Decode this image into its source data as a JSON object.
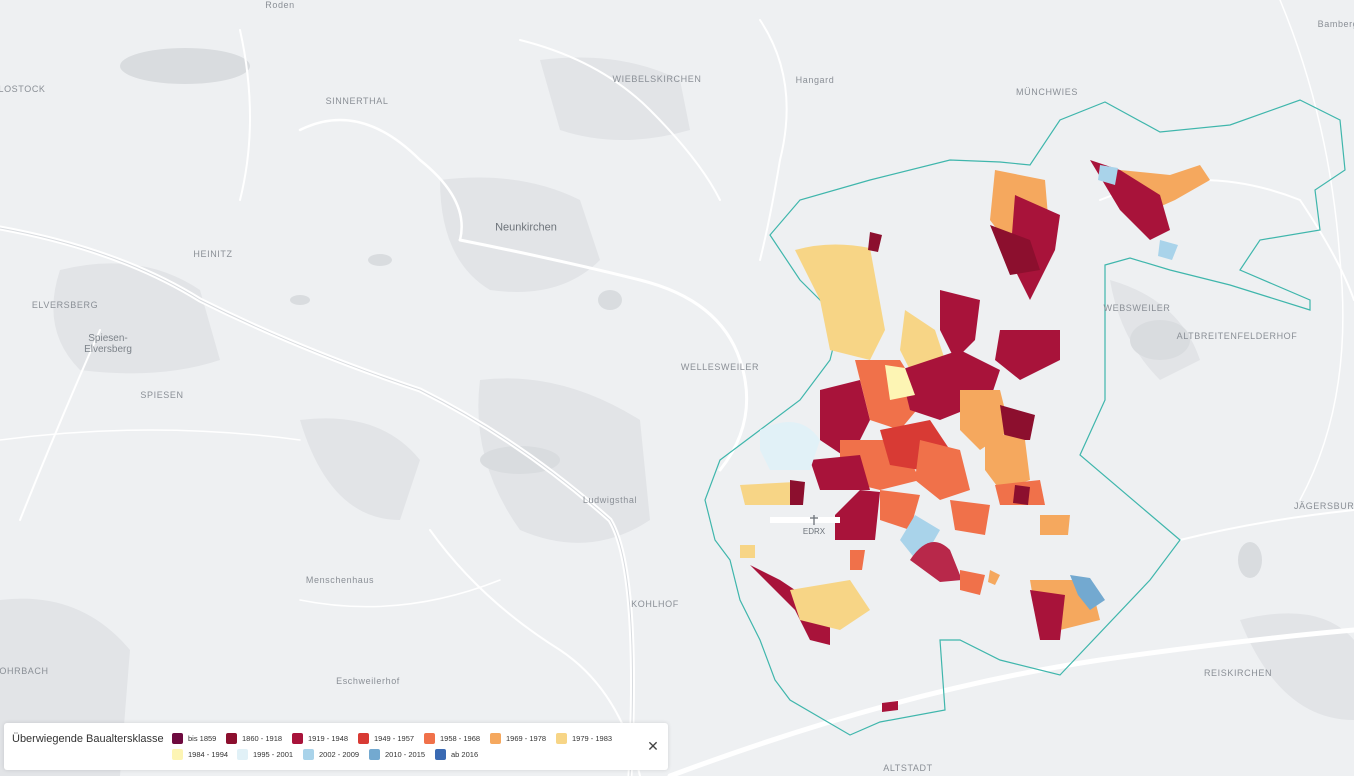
{
  "map": {
    "places": [
      {
        "label": "Roden"
      },
      {
        "label": "LOSTOCK"
      },
      {
        "label": "SINNERTHAL"
      },
      {
        "label": "WIEBELSKIRCHEN"
      },
      {
        "label": "Hangard"
      },
      {
        "label": "MÜNCHWIES"
      },
      {
        "label": "HEINITZ"
      },
      {
        "label": "ELVERSBERG"
      },
      {
        "label": "SPIESEN"
      },
      {
        "label": "WELLESWEILER"
      },
      {
        "label": "WEBSWEILER"
      },
      {
        "label": "ALTBREITENFELDERHOF"
      },
      {
        "label": "KOHLHOF"
      },
      {
        "label": "JÄGERSBURG"
      },
      {
        "label": "OHRBACH"
      },
      {
        "label": "REISKIRCHEN"
      },
      {
        "label": "ALTSTADT"
      },
      {
        "label": "Ludwigsthal"
      },
      {
        "label": "Menschenhaus"
      },
      {
        "label": "Eschweilerhof"
      },
      {
        "label": "Bamberg"
      }
    ],
    "towns": {
      "neunkirchen": "Neunkirchen",
      "spiesen_elversberg": "Spiesen-\nElversberg"
    },
    "airport_code": "EDRX"
  },
  "legend": {
    "title": "Überwiegende Baualtersklasse",
    "items": [
      {
        "label": "bis 1859",
        "color": "#6e0a3f"
      },
      {
        "label": "1860 - 1918",
        "color": "#8c0f2e"
      },
      {
        "label": "1919 - 1948",
        "color": "#a8133a"
      },
      {
        "label": "1949 - 1957",
        "color": "#d83a34"
      },
      {
        "label": "1958 - 1968",
        "color": "#f0714a"
      },
      {
        "label": "1969 - 1978",
        "color": "#f5a85e"
      },
      {
        "label": "1979 - 1983",
        "color": "#f7d586"
      },
      {
        "label": "1984 - 1994",
        "color": "#fdf5b4"
      },
      {
        "label": "1995 - 2001",
        "color": "#e1f1f7"
      },
      {
        "label": "2002 - 2009",
        "color": "#a9d3ea"
      },
      {
        "label": "2010 - 2015",
        "color": "#73a9d0"
      },
      {
        "label": "ab 2016",
        "color": "#3a6ab3"
      }
    ],
    "close_icon": "close-icon"
  }
}
